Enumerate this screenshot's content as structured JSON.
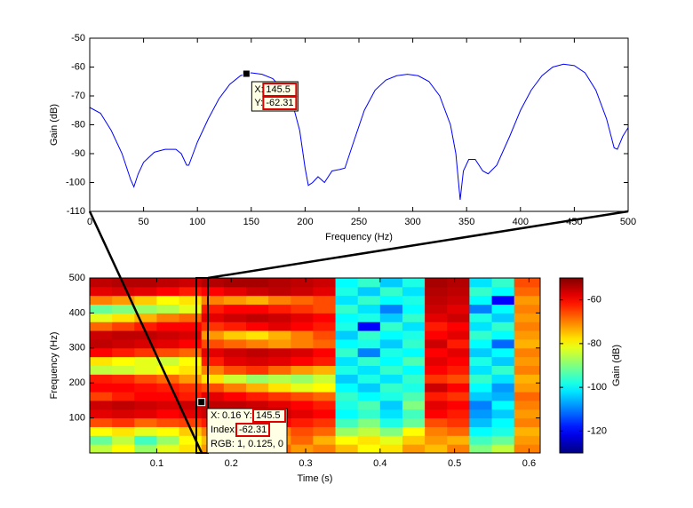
{
  "chart_data": [
    {
      "type": "line",
      "xlabel": "Frequency (Hz)",
      "ylabel": "Gain (dB)",
      "xlim": [
        0,
        500
      ],
      "xticks": [
        0,
        50,
        100,
        150,
        200,
        250,
        300,
        350,
        400,
        450,
        500
      ],
      "ylim": [
        -110,
        -50
      ],
      "yticks": [
        -110,
        -100,
        -90,
        -80,
        -70,
        -60,
        -50
      ],
      "x": [
        0,
        10,
        20,
        30,
        38,
        41,
        45,
        50,
        60,
        70,
        80,
        85,
        90,
        92,
        95,
        100,
        110,
        120,
        130,
        140,
        145.5,
        150,
        160,
        170,
        180,
        190,
        195,
        200,
        203,
        207,
        212,
        218,
        225,
        232,
        237,
        245,
        255,
        265,
        275,
        285,
        295,
        305,
        315,
        325,
        335,
        340,
        344,
        347,
        352,
        358,
        365,
        370,
        378,
        390,
        400,
        410,
        420,
        430,
        440,
        450,
        460,
        470,
        480,
        487,
        490,
        495,
        500
      ],
      "series": [
        {
          "color": "#0000ff",
          "values": [
            -74,
            -76,
            -82,
            -90,
            -99,
            -101.5,
            -97,
            -93,
            -89.5,
            -88.5,
            -88.5,
            -90,
            -94,
            -94,
            -91,
            -86,
            -78,
            -71,
            -66,
            -63,
            -62.31,
            -62,
            -62.5,
            -64,
            -68,
            -75,
            -82,
            -95,
            -101,
            -100,
            -98,
            -100,
            -96,
            -95.5,
            -95,
            -86,
            -75,
            -68,
            -64.5,
            -63,
            -62.5,
            -63,
            -65,
            -70,
            -80,
            -90,
            -106,
            -96,
            -92,
            -92,
            -96,
            -97,
            -94,
            -84,
            -75,
            -68,
            -63,
            -60,
            -59,
            -59.5,
            -62,
            -68,
            -78,
            -88,
            -88.5,
            -84,
            -81
          ]
        }
      ],
      "datatip": {
        "x": 145.5,
        "y": -62.31,
        "x_prefix": "X:",
        "y_prefix": "Y:"
      }
    },
    {
      "type": "heatmap",
      "xlabel": "Time (s)",
      "ylabel": "Frequency (Hz)",
      "xlim": [
        0.01,
        0.615
      ],
      "xticks": [
        0.1,
        0.2,
        0.3,
        0.4,
        0.5,
        0.6
      ],
      "ylim": [
        0,
        500
      ],
      "yticks": [
        100,
        200,
        300,
        400,
        500
      ],
      "x": [
        0.025,
        0.055,
        0.085,
        0.115,
        0.145,
        0.175,
        0.205,
        0.235,
        0.265,
        0.295,
        0.325,
        0.355,
        0.385,
        0.415,
        0.445,
        0.475,
        0.505,
        0.535,
        0.565,
        0.595
      ],
      "y": [
        12.5,
        37.5,
        62.5,
        87.5,
        112.5,
        137.5,
        162.5,
        187.5,
        212.5,
        237.5,
        262.5,
        287.5,
        312.5,
        337.5,
        362.5,
        387.5,
        412.5,
        437.5,
        462.5,
        487.5
      ],
      "z": [
        [
          -85,
          -80,
          -88,
          -82,
          -78,
          -72,
          -70,
          -74,
          -68,
          -72,
          -70,
          -75,
          -80,
          -78,
          -72,
          -75,
          -70,
          -90,
          -85,
          -70
        ],
        [
          -92,
          -85,
          -95,
          -88,
          -80,
          -75,
          -72,
          -70,
          -72,
          -68,
          -74,
          -80,
          -78,
          -82,
          -76,
          -72,
          -74,
          -95,
          -92,
          -72
        ],
        [
          -80,
          -78,
          -82,
          -80,
          -76,
          -70,
          -68,
          -66,
          -70,
          -66,
          -68,
          -88,
          -85,
          -90,
          -80,
          -70,
          -68,
          -100,
          -98,
          -74
        ],
        [
          -66,
          -64,
          -68,
          -66,
          -65,
          -62,
          -60,
          -62,
          -60,
          -62,
          -64,
          -95,
          -90,
          -98,
          -92,
          -66,
          -64,
          -105,
          -100,
          -70
        ],
        [
          -58,
          -57,
          -58,
          -60,
          -58,
          -56,
          -56,
          -57,
          -56,
          -58,
          -60,
          -100,
          -96,
          -102,
          -95,
          -60,
          -62,
          -108,
          -104,
          -72
        ],
        [
          -56,
          -55,
          -56,
          -57,
          -56,
          -55,
          -55,
          -56,
          -58,
          -60,
          -62,
          -98,
          -94,
          -104,
          -90,
          -58,
          -60,
          -110,
          -100,
          -70
        ],
        [
          -65,
          -62,
          -60,
          -60,
          -62,
          -58,
          -60,
          -62,
          -64,
          -66,
          -68,
          -96,
          -100,
          -98,
          -94,
          -62,
          -64,
          -104,
          -106,
          -68
        ],
        [
          -60,
          -60,
          -61,
          -62,
          -64,
          -66,
          -70,
          -74,
          -78,
          -82,
          -80,
          -100,
          -104,
          -96,
          -98,
          -56,
          -60,
          -100,
          -108,
          -72
        ],
        [
          -62,
          -63,
          -66,
          -68,
          -72,
          -78,
          -84,
          -88,
          -86,
          -88,
          -84,
          -104,
          -98,
          -102,
          -96,
          -64,
          -66,
          -96,
          -102,
          -74
        ],
        [
          -85,
          -84,
          -82,
          -80,
          -78,
          -70,
          -66,
          -64,
          -68,
          -72,
          -74,
          -98,
          -102,
          -96,
          -100,
          -60,
          -62,
          -102,
          -96,
          -70
        ],
        [
          -78,
          -80,
          -82,
          -84,
          -80,
          -62,
          -58,
          -57,
          -58,
          -60,
          -62,
          -102,
          -96,
          -100,
          -94,
          -58,
          -60,
          -98,
          -104,
          -72
        ],
        [
          -60,
          -62,
          -64,
          -66,
          -68,
          -58,
          -56,
          -55,
          -56,
          -57,
          -60,
          -96,
          -110,
          -98,
          -100,
          -60,
          -58,
          -104,
          -100,
          -70
        ],
        [
          -55,
          -56,
          -57,
          -58,
          -60,
          -66,
          -68,
          -70,
          -72,
          -70,
          -68,
          -100,
          -98,
          -104,
          -96,
          -56,
          -62,
          -100,
          -112,
          -74
        ],
        [
          -56,
          -55,
          -55,
          -56,
          -57,
          -72,
          -76,
          -78,
          -74,
          -70,
          -66,
          -104,
          -96,
          -100,
          -98,
          -60,
          -58,
          -96,
          -100,
          -72
        ],
        [
          -68,
          -65,
          -62,
          -60,
          -60,
          -64,
          -62,
          -60,
          -58,
          -60,
          -62,
          -98,
          -120,
          -96,
          -102,
          -62,
          -60,
          -102,
          -96,
          -70
        ],
        [
          -82,
          -78,
          -74,
          -70,
          -68,
          -58,
          -56,
          -55,
          -56,
          -58,
          -60,
          -100,
          -98,
          -104,
          -96,
          -58,
          -56,
          -98,
          -104,
          -72
        ],
        [
          -92,
          -90,
          -88,
          -86,
          -82,
          -62,
          -60,
          -60,
          -62,
          -64,
          -66,
          -96,
          -102,
          -110,
          -100,
          -56,
          -58,
          -110,
          -100,
          -70
        ],
        [
          -70,
          -72,
          -76,
          -80,
          -78,
          -70,
          -72,
          -74,
          -70,
          -68,
          -66,
          -102,
          -96,
          -100,
          -98,
          -55,
          -56,
          -100,
          -120,
          -72
        ],
        [
          -58,
          -57,
          -58,
          -60,
          -62,
          -60,
          -58,
          -56,
          -55,
          -56,
          -58,
          -98,
          -104,
          -96,
          -102,
          -54,
          -55,
          -96,
          -100,
          -68
        ],
        [
          -55,
          -54,
          -54,
          -55,
          -56,
          -54,
          -53,
          -53,
          -54,
          -55,
          -56,
          -100,
          -96,
          -104,
          -98,
          -53,
          -54,
          -102,
          -96,
          -66
        ]
      ],
      "colorbar": {
        "colormap": "jet",
        "lim": [
          -130,
          -50
        ],
        "ticks": [
          -120,
          -100,
          -80,
          -60
        ],
        "label": "Gain (dB)"
      },
      "datatip": {
        "x": 0.16,
        "y": 145.5,
        "index": -62.31,
        "x_prefix": "X:",
        "y_prefix": "Y:",
        "index_prefix": "Index:",
        "rgb": "RGB: 1, 0.125, 0"
      }
    }
  ]
}
